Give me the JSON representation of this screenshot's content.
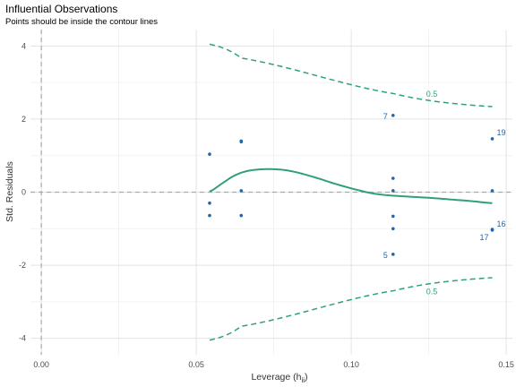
{
  "chart_data": {
    "type": "scatter",
    "title": "Influential Observations",
    "subtitle": "Points should be inside the contour lines",
    "xlabel": "Leverage (h",
    "xlabel_sub": "ii",
    "xlabel_end": ")",
    "ylabel": "Std. Residuals",
    "xlim": [
      -0.0035,
      0.152
    ],
    "ylim": [
      -4.45,
      4.45
    ],
    "x_ticks": [
      0.0,
      0.05,
      0.1,
      0.15
    ],
    "x_tick_labels": [
      "0.00",
      "0.05",
      "0.10",
      "0.15"
    ],
    "y_ticks": [
      4,
      2,
      0,
      -2,
      -4
    ],
    "y_tick_labels": [
      "4",
      "2",
      "0",
      "-2",
      "-4"
    ],
    "grid": true,
    "reference_lines": {
      "x": 0,
      "y": 0
    },
    "colors": {
      "points": "#2166ac",
      "smooth": "#31a07a",
      "contour": "#31a07a",
      "reference": "#aaaaaa",
      "grid": "#e3e3e3"
    },
    "points": [
      {
        "x": 0.0543,
        "y": 1.04,
        "label": ""
      },
      {
        "x": 0.0543,
        "y": -0.3,
        "label": ""
      },
      {
        "x": 0.0543,
        "y": -0.64,
        "label": ""
      },
      {
        "x": 0.0645,
        "y": 1.38,
        "label": ""
      },
      {
        "x": 0.0645,
        "y": 1.4,
        "label": ""
      },
      {
        "x": 0.0645,
        "y": 0.04,
        "label": ""
      },
      {
        "x": 0.0645,
        "y": -0.64,
        "label": ""
      },
      {
        "x": 0.1135,
        "y": 2.1,
        "label": "7"
      },
      {
        "x": 0.1135,
        "y": 0.38,
        "label": ""
      },
      {
        "x": 0.1135,
        "y": 0.04,
        "label": ""
      },
      {
        "x": 0.1135,
        "y": -0.66,
        "label": ""
      },
      {
        "x": 0.1135,
        "y": -1.0,
        "label": ""
      },
      {
        "x": 0.1135,
        "y": -1.7,
        "label": "5"
      },
      {
        "x": 0.1455,
        "y": 1.46,
        "label": "19"
      },
      {
        "x": 0.1455,
        "y": 0.04,
        "label": ""
      },
      {
        "x": 0.1455,
        "y": -1.02,
        "label": "16"
      },
      {
        "x": 0.1455,
        "y": -1.04,
        "label": "17"
      }
    ],
    "smooth_line": {
      "x": [
        0.0543,
        0.058,
        0.062,
        0.066,
        0.07,
        0.074,
        0.078,
        0.082,
        0.086,
        0.09,
        0.094,
        0.098,
        0.102,
        0.106,
        0.11,
        0.114,
        0.12,
        0.126,
        0.132,
        0.138,
        0.1455
      ],
      "y": [
        0.02,
        0.22,
        0.44,
        0.57,
        0.62,
        0.63,
        0.61,
        0.55,
        0.46,
        0.36,
        0.25,
        0.15,
        0.06,
        -0.02,
        -0.07,
        -0.1,
        -0.13,
        -0.16,
        -0.2,
        -0.24,
        -0.3
      ]
    },
    "contours": [
      {
        "label": "0.5",
        "x": [
          0.0543,
          0.0645,
          0.1135,
          0.1455
        ],
        "y": [
          4.05,
          3.67,
          2.7,
          2.34
        ],
        "label_at": [
          0.126,
          2.68
        ]
      },
      {
        "label": "0.5",
        "x": [
          0.0543,
          0.0645,
          0.1135,
          0.1455
        ],
        "y": [
          -4.05,
          -3.67,
          -2.7,
          -2.34
        ],
        "label_at": [
          0.126,
          -2.72
        ]
      }
    ]
  }
}
